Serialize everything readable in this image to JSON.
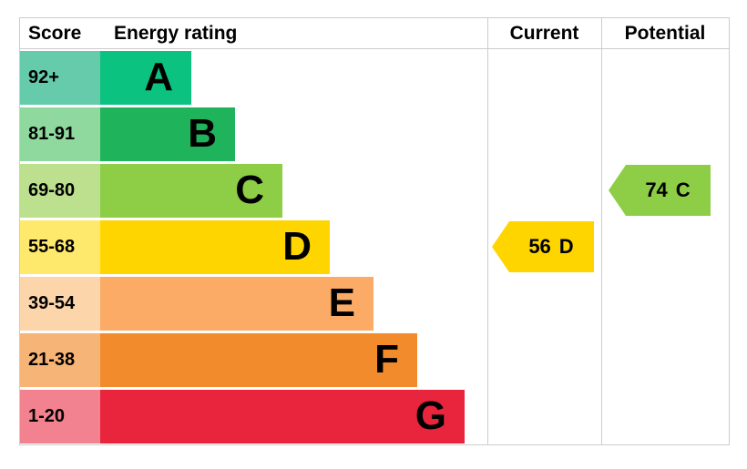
{
  "header": {
    "score": "Score",
    "energy_rating": "Energy rating",
    "current": "Current",
    "potential": "Potential"
  },
  "bands": [
    {
      "score": "92+",
      "letter": "A",
      "score_color": "#66cbaa",
      "bar_color": "#0cc281",
      "width_pct": 23.5
    },
    {
      "score": "81-91",
      "letter": "B",
      "score_color": "#8fd89e",
      "bar_color": "#1fb35b",
      "width_pct": 34.8
    },
    {
      "score": "69-80",
      "letter": "C",
      "score_color": "#bce08e",
      "bar_color": "#8dce46",
      "width_pct": 47.0
    },
    {
      "score": "55-68",
      "letter": "D",
      "score_color": "#ffe96c",
      "bar_color": "#ffd500",
      "width_pct": 59.3
    },
    {
      "score": "39-54",
      "letter": "E",
      "score_color": "#fdd5ab",
      "bar_color": "#fbab66",
      "width_pct": 70.6
    },
    {
      "score": "21-38",
      "letter": "F",
      "score_color": "#f7b477",
      "bar_color": "#f18b2c",
      "width_pct": 81.9
    },
    {
      "score": "1-20",
      "letter": "G",
      "score_color": "#f2828f",
      "bar_color": "#e9243d",
      "width_pct": 94.1
    }
  ],
  "indicators": {
    "current": {
      "value": "56",
      "letter": "D",
      "band": "D",
      "color": "#ffd500"
    },
    "potential": {
      "value": "74",
      "letter": "C",
      "band": "C",
      "color": "#8dce46"
    }
  },
  "chart_data": {
    "type": "bar",
    "title": "Energy rating",
    "categories": [
      "A",
      "B",
      "C",
      "D",
      "E",
      "F",
      "G"
    ],
    "score_ranges": [
      "92+",
      "81-91",
      "69-80",
      "55-68",
      "39-54",
      "21-38",
      "1-20"
    ],
    "bar_width_pct": [
      23.5,
      34.8,
      47.0,
      59.3,
      70.6,
      81.9,
      94.1
    ],
    "band_colors": [
      "#0cc281",
      "#1fb35b",
      "#8dce46",
      "#ffd500",
      "#fbab66",
      "#f18b2c",
      "#e9243d"
    ],
    "current": {
      "value": 56,
      "band": "D"
    },
    "potential": {
      "value": 74,
      "band": "C"
    },
    "legend_position": "none",
    "grid": false
  }
}
